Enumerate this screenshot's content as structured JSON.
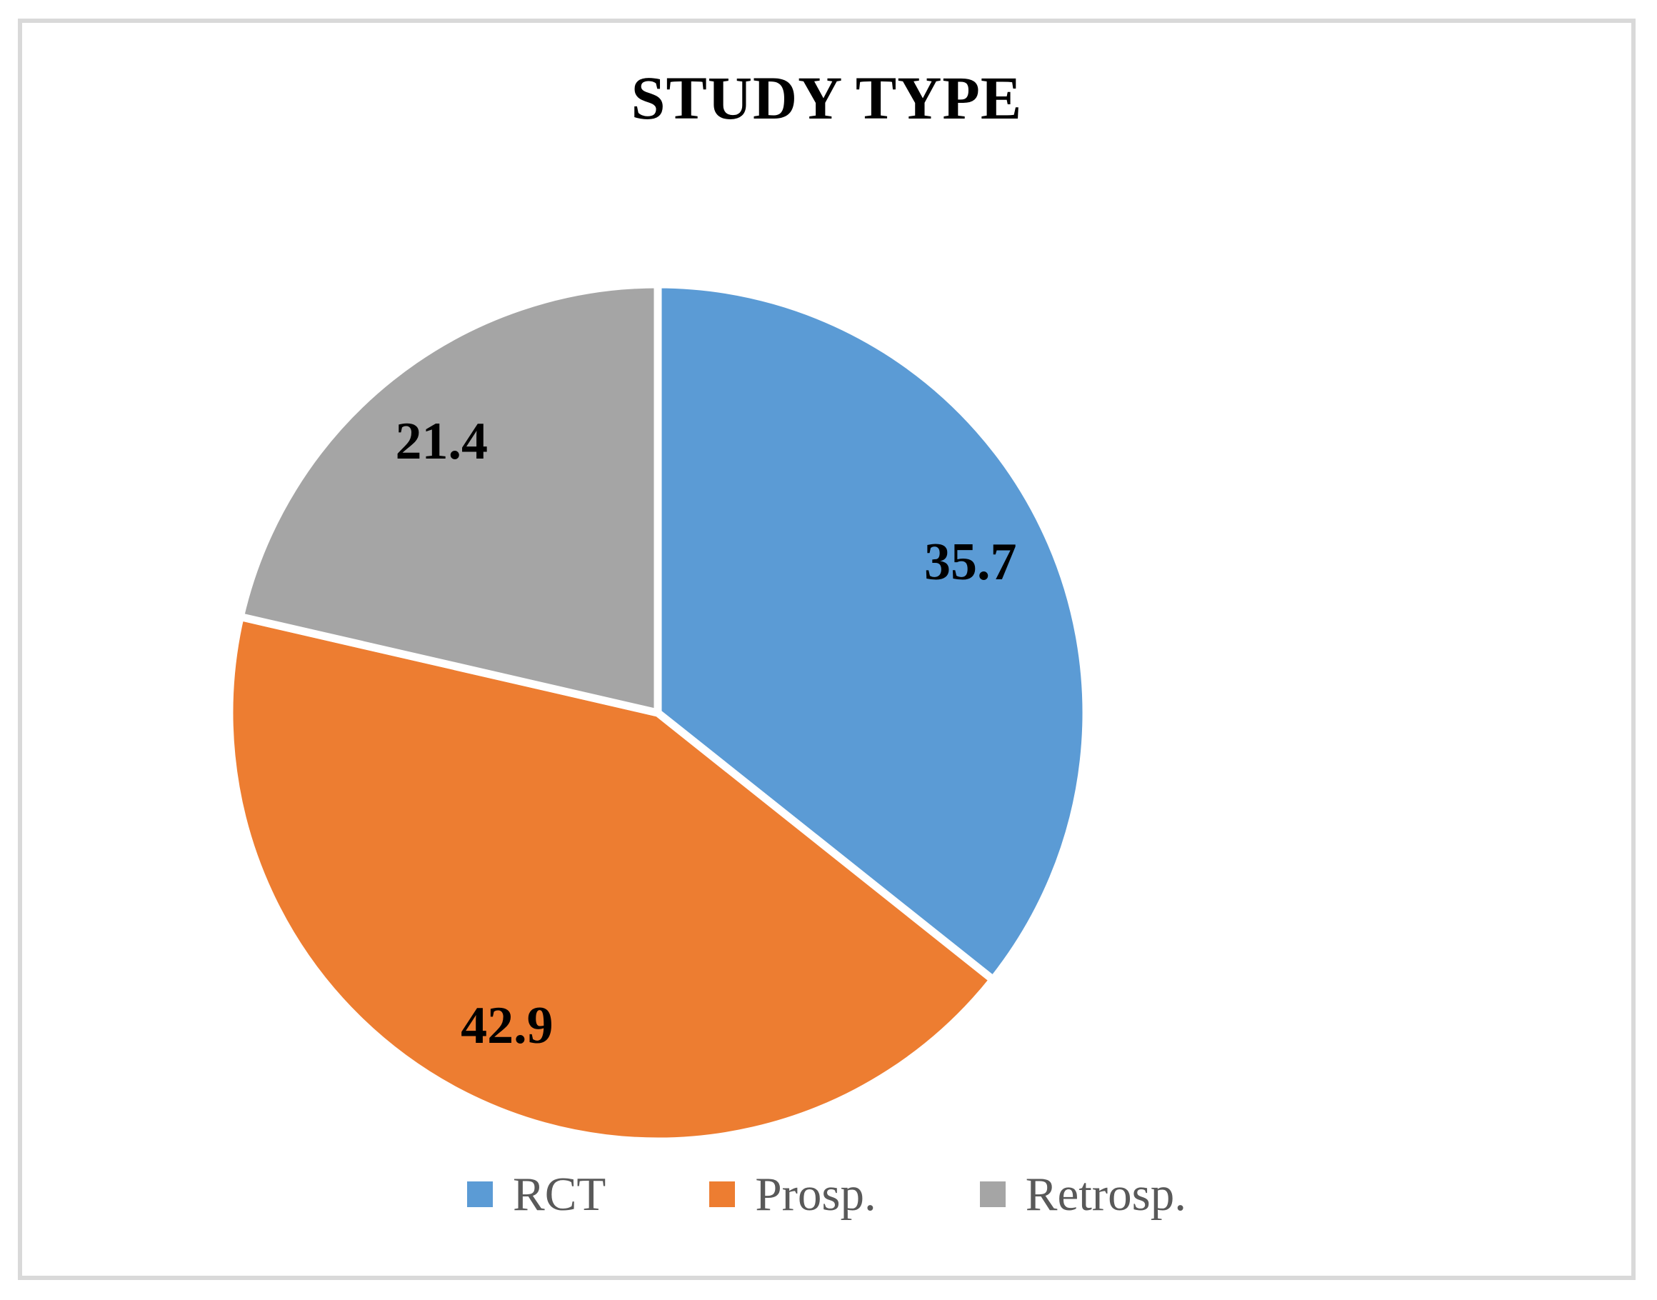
{
  "figure": {
    "background_color": "#FFFFFF",
    "border_color": "#D9D9D9"
  },
  "chart_data": {
    "type": "pie",
    "title": "STUDY TYPE",
    "categories": [
      "RCT",
      "Prosp.",
      "Retrosp."
    ],
    "values": [
      35.7,
      42.9,
      21.4
    ],
    "labels_display": [
      "35.7",
      "42.9",
      "21.4"
    ],
    "colors": [
      "#5B9BD5",
      "#ED7D31",
      "#A5A5A5"
    ],
    "start_angle_deg": 0,
    "direction": "clockwise",
    "separator_color": "#FFFFFF",
    "data_label_color": "#000000",
    "legend_position": "bottom",
    "legend_text_color": "#595959",
    "grid": false
  }
}
